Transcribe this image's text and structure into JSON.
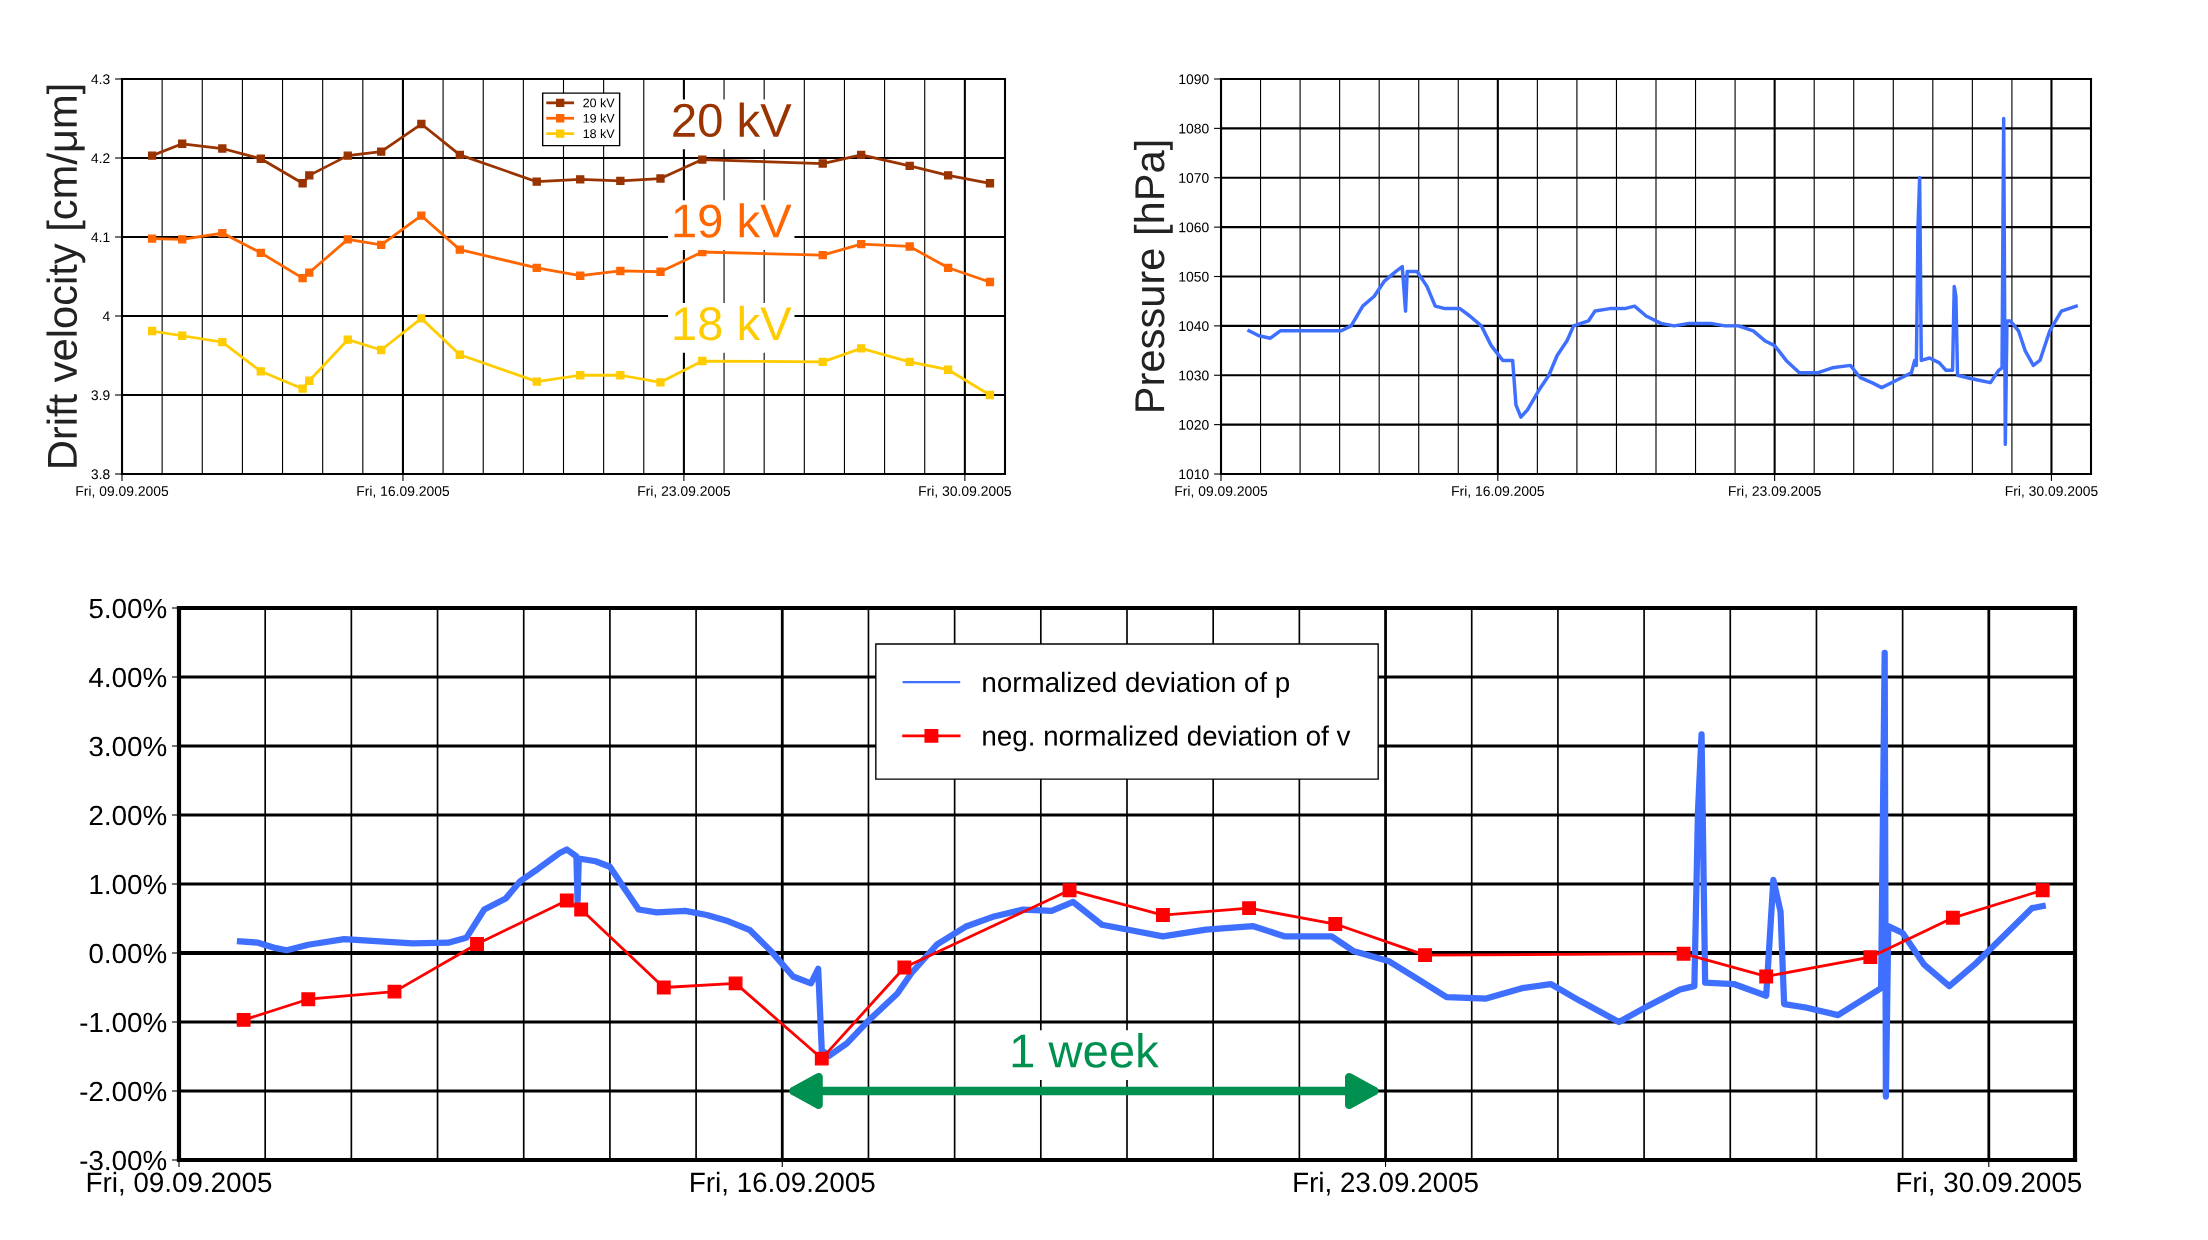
{
  "chart_data": [
    {
      "type": "line",
      "ylabel": "Drift velocity [cm/μm]",
      "xlim": [
        "2005-09-09",
        "2005-10-01"
      ],
      "ylim": [
        3.8,
        4.3
      ],
      "yticks": [
        3.8,
        3.9,
        4,
        4.1,
        4.2,
        4.3
      ],
      "xticks": [
        {
          "value": "2005-09-09",
          "label": "Fri, 09.09.2005"
        },
        {
          "value": "2005-09-16",
          "label": "Fri, 16.09.2005"
        },
        {
          "value": "2005-09-23",
          "label": "Fri, 23.09.2005"
        },
        {
          "value": "2005-09-30",
          "label": "Fri, 30.09.2005"
        }
      ],
      "x": [
        "2005-09-09T18:00",
        "2005-09-10T12:00",
        "2005-09-11T12:00",
        "2005-09-12T11:00",
        "2005-09-13T12:00",
        "2005-09-13T16:00",
        "2005-09-14T15:00",
        "2005-09-15T11:00",
        "2005-09-16T11:00",
        "2005-09-17T10:00",
        "2005-09-19T08:00",
        "2005-09-20T10:00",
        "2005-09-21T10:00",
        "2005-09-22T10:00",
        "2005-09-23T11:00",
        "2005-09-26T11:00",
        "2005-09-27T10:00",
        "2005-09-28T15:00",
        "2005-09-29T14:00",
        "2005-09-30T15:00"
      ],
      "series": [
        {
          "name": "20 kV",
          "color": "#993300",
          "marker": "square",
          "values": [
            4.203,
            4.218,
            4.212,
            4.199,
            4.168,
            4.178,
            4.203,
            4.208,
            4.243,
            4.204,
            4.17,
            4.173,
            4.171,
            4.174,
            4.198,
            4.193,
            4.204,
            4.19,
            4.178,
            4.168
          ]
        },
        {
          "name": "19 kV",
          "color": "#ff6600",
          "marker": "square",
          "values": [
            4.098,
            4.097,
            4.105,
            4.08,
            4.048,
            4.055,
            4.097,
            4.09,
            4.127,
            4.084,
            4.061,
            4.051,
            4.057,
            4.056,
            4.081,
            4.077,
            4.091,
            4.088,
            4.061,
            4.043
          ]
        },
        {
          "name": "18 kV",
          "color": "#ffcc00",
          "marker": "square",
          "values": [
            3.981,
            3.975,
            3.967,
            3.93,
            3.908,
            3.918,
            3.97,
            3.957,
            3.997,
            3.951,
            3.917,
            3.925,
            3.925,
            3.916,
            3.943,
            3.942,
            3.959,
            3.942,
            3.932,
            3.9
          ]
        }
      ],
      "annotations": [
        "20 kV",
        "19 kV",
        "18 kV"
      ],
      "legend": "top",
      "grid": true,
      "line_style": "solid"
    },
    {
      "type": "line",
      "ylabel": "Pressure [hPa]",
      "xlim": [
        "2005-09-09",
        "2005-10-01"
      ],
      "ylim": [
        1010,
        1090
      ],
      "yticks": [
        1010,
        1020,
        1030,
        1040,
        1050,
        1060,
        1070,
        1080,
        1090
      ],
      "xticks": [
        {
          "value": "2005-09-09",
          "label": "Fri, 09.09.2005"
        },
        {
          "value": "2005-09-16",
          "label": "Fri, 16.09.2005"
        },
        {
          "value": "2005-09-23",
          "label": "Fri, 23.09.2005"
        },
        {
          "value": "2005-09-30",
          "label": "Fri, 30.09.2005"
        }
      ],
      "x": [
        "2005-09-09T17:00",
        "2005-09-09T23:00",
        "2005-09-10T06:00",
        "2005-09-10T12:00",
        "2005-09-10T21:00",
        "2005-09-11T06:00",
        "2005-09-11T16:00",
        "2005-09-12T01:00",
        "2005-09-12T07:00",
        "2005-09-12T14:00",
        "2005-09-12T21:00",
        "2005-09-13T03:00",
        "2005-09-13T10:00",
        "2005-09-13T14:00",
        "2005-09-13T16:00",
        "2005-09-13T17:00",
        "2005-09-13T23:00",
        "2005-09-14T05:00",
        "2005-09-14T10:00",
        "2005-09-14T16:00",
        "2005-09-15T01:00",
        "2005-09-15T07:00",
        "2005-09-15T14:00",
        "2005-09-15T20:00",
        "2005-09-16T03:00",
        "2005-09-16T09:00",
        "2005-09-16T11:00",
        "2005-09-16T14:00",
        "2005-09-16T18:00",
        "2005-09-17T01:00",
        "2005-09-17T07:00",
        "2005-09-17T12:00",
        "2005-09-17T18:00",
        "2005-09-17T22:00",
        "2005-09-18T07:00",
        "2005-09-18T11:00",
        "2005-09-18T20:00",
        "2005-09-19T05:00",
        "2005-09-19T11:00",
        "2005-09-19T18:00",
        "2005-09-20T03:00",
        "2005-09-20T11:00",
        "2005-09-20T20:00",
        "2005-09-21T09:00",
        "2005-09-21T18:00",
        "2005-09-22T02:00",
        "2005-09-22T11:00",
        "2005-09-22T18:00",
        "2005-09-23T00:00",
        "2005-09-23T07:00",
        "2005-09-23T15:00",
        "2005-09-24T02:00",
        "2005-09-24T11:00",
        "2005-09-24T22:00",
        "2005-09-25T04:00",
        "2005-09-25T11:00",
        "2005-09-25T17:00",
        "2005-09-26T02:00",
        "2005-09-26T11:00",
        "2005-09-26T13:00",
        "2005-09-26T14:00",
        "2005-09-26T15:00",
        "2005-09-26T16:00",
        "2005-09-26T17:00",
        "2005-09-26T22:00",
        "2005-09-27T04:00",
        "2005-09-27T08:00",
        "2005-09-27T12:00",
        "2005-09-27T13:00",
        "2005-09-27T14:00",
        "2005-09-27T15:00",
        "2005-09-27T21:00",
        "2005-09-28T04:00",
        "2005-09-28T11:00",
        "2005-09-28T16:00",
        "2005-09-28T18:00",
        "2005-09-28T19:00",
        "2005-09-28T20:00",
        "2005-09-28T21:00",
        "2005-09-28T23:00",
        "2005-09-29T04:00",
        "2005-09-29T08:00",
        "2005-09-29T13:00",
        "2005-09-29T17:00",
        "2005-09-29T23:00",
        "2005-09-30T06:00",
        "2005-09-30T15:00"
      ],
      "series": [
        {
          "color": "#3f6fff",
          "marker": "none",
          "values": [
            1039,
            1038,
            1037.5,
            1039,
            1039,
            1039,
            1039,
            1039,
            1040,
            1044,
            1046,
            1049,
            1051,
            1052,
            1043,
            1051,
            1051,
            1048,
            1044,
            1043.5,
            1043.5,
            1042,
            1040,
            1036,
            1033,
            1033,
            1024,
            1021.5,
            1023,
            1027,
            1030,
            1034,
            1037,
            1040,
            1041,
            1043,
            1043.5,
            1043.5,
            1044,
            1042,
            1040.5,
            1040,
            1040.5,
            1040.5,
            1040,
            1040,
            1039,
            1037,
            1036,
            1033,
            1030.5,
            1030.5,
            1031.5,
            1032,
            1029.5,
            1028.5,
            1027.5,
            1029,
            1030.5,
            1033,
            1032,
            1060,
            1070,
            1033,
            1033.5,
            1032.5,
            1031,
            1031,
            1048,
            1046,
            1030,
            1029.5,
            1029,
            1028.5,
            1031,
            1031.5,
            1082,
            1016,
            1041,
            1041,
            1039,
            1035,
            1032,
            1033,
            1039,
            1043,
            1044
          ]
        }
      ],
      "grid": true,
      "line_style": "solid"
    },
    {
      "type": "line",
      "xlim": [
        "2005-09-09",
        "2005-10-01"
      ],
      "ylim": [
        -3,
        5
      ],
      "yticks": [
        {
          "value": -3,
          "label": "-3.00%"
        },
        {
          "value": -2,
          "label": "-2.00%"
        },
        {
          "value": -1,
          "label": "-1.00%"
        },
        {
          "value": 0,
          "label": "0.00%"
        },
        {
          "value": 1,
          "label": "1.00%"
        },
        {
          "value": 2,
          "label": "2.00%"
        },
        {
          "value": 3,
          "label": "3.00%"
        },
        {
          "value": 4,
          "label": "4.00%"
        },
        {
          "value": 5,
          "label": "5.00%"
        }
      ],
      "xticks": [
        {
          "value": "2005-09-09",
          "label": "Fri, 09.09.2005"
        },
        {
          "value": "2005-09-16",
          "label": "Fri, 16.09.2005"
        },
        {
          "value": "2005-09-23",
          "label": "Fri, 23.09.2005"
        },
        {
          "value": "2005-09-30",
          "label": "Fri, 30.09.2005"
        }
      ],
      "series": [
        {
          "name": "normalized deviation of p",
          "color": "#3f6fff",
          "marker": "none",
          "x": [
            "2005-09-09T17:00",
            "2005-09-09T22:00",
            "2005-09-10T03:00",
            "2005-09-10T06:00",
            "2005-09-10T12:00",
            "2005-09-10T22:00",
            "2005-09-11T08:00",
            "2005-09-11T17:00",
            "2005-09-12T03:00",
            "2005-09-12T08:00",
            "2005-09-12T13:00",
            "2005-09-12T19:00",
            "2005-09-12T23:00",
            "2005-09-13T04:00",
            "2005-09-13T10:00",
            "2005-09-13T12:00",
            "2005-09-13T14:40",
            "2005-09-13T15:00",
            "2005-09-13T15:20",
            "2005-09-13T20:00",
            "2005-09-14T00:00",
            "2005-09-14T04:00",
            "2005-09-14T08:00",
            "2005-09-14T13:00",
            "2005-09-14T21:00",
            "2005-09-15T03:00",
            "2005-09-15T09:00",
            "2005-09-15T15:00",
            "2005-09-15T21:00",
            "2005-09-16T03:00",
            "2005-09-16T08:00",
            "2005-09-16T10:00",
            "2005-09-16T11:00",
            "2005-09-16T13:00",
            "2005-09-16T18:00",
            "2005-09-17T00:00",
            "2005-09-17T08:00",
            "2005-09-17T12:00",
            "2005-09-17T19:00",
            "2005-09-18T03:00",
            "2005-09-18T11:00",
            "2005-09-18T19:00",
            "2005-09-19T03:00",
            "2005-09-19T09:00",
            "2005-09-19T17:00",
            "2005-09-20T00:00",
            "2005-09-20T10:00",
            "2005-09-20T22:00",
            "2005-09-21T11:00",
            "2005-09-21T20:00",
            "2005-09-22T09:00",
            "2005-09-22T15:00",
            "2005-09-23T01:00",
            "2005-09-23T09:00",
            "2005-09-23T17:00",
            "2005-09-24T04:00",
            "2005-09-24T14:00",
            "2005-09-24T22:00",
            "2005-09-25T06:00",
            "2005-09-25T17:00",
            "2005-09-26T01:00",
            "2005-09-26T10:00",
            "2005-09-26T14:00",
            "2005-09-26T15:00",
            "2005-09-26T16:00",
            "2005-09-26T17:00",
            "2005-09-27T01:00",
            "2005-09-27T10:00",
            "2005-09-27T12:00",
            "2005-09-27T14:00",
            "2005-09-27T15:00",
            "2005-09-27T21:00",
            "2005-09-28T06:00",
            "2005-09-28T14:00",
            "2005-09-28T18:00",
            "2005-09-28T19:00",
            "2005-09-28T19:20",
            "2005-09-28T20:00",
            "2005-09-29T00:00",
            "2005-09-29T06:00",
            "2005-09-29T13:00",
            "2005-09-29T20:00",
            "2005-09-30T04:00",
            "2005-09-30T12:00",
            "2005-09-30T15:00"
          ],
          "values": [
            0.17,
            0.15,
            0.07,
            0.04,
            0.12,
            0.2,
            0.17,
            0.14,
            0.15,
            0.22,
            0.63,
            0.79,
            1.04,
            1.22,
            1.45,
            1.5,
            1.4,
            0.74,
            1.37,
            1.33,
            1.25,
            0.94,
            0.63,
            0.59,
            0.61,
            0.55,
            0.46,
            0.33,
            0.02,
            -0.34,
            -0.44,
            -0.23,
            -1.41,
            -1.49,
            -1.31,
            -0.98,
            -0.59,
            -0.29,
            0.12,
            0.38,
            0.53,
            0.63,
            0.61,
            0.74,
            0.41,
            0.34,
            0.24,
            0.34,
            0.39,
            0.24,
            0.24,
            0.03,
            -0.12,
            -0.38,
            -0.64,
            -0.66,
            -0.51,
            -0.45,
            -0.69,
            -1.0,
            -0.77,
            -0.53,
            -0.48,
            2.04,
            3.17,
            -0.43,
            -0.45,
            -0.62,
            1.06,
            0.6,
            -0.74,
            -0.79,
            -0.9,
            -0.64,
            -0.51,
            4.35,
            -2.08,
            0.39,
            0.29,
            -0.17,
            -0.48,
            -0.17,
            0.24,
            0.65,
            0.68
          ]
        },
        {
          "name": "neg. normalized deviation of v",
          "color": "#ff0000",
          "marker": "square",
          "x": [
            "2005-09-09T18:00",
            "2005-09-10T12:00",
            "2005-09-11T12:00",
            "2005-09-12T11:00",
            "2005-09-13T12:00",
            "2005-09-13T16:00",
            "2005-09-14T15:00",
            "2005-09-15T11:00",
            "2005-09-16T11:00",
            "2005-09-17T10:00",
            "2005-09-19T08:00",
            "2005-09-20T10:00",
            "2005-09-21T10:00",
            "2005-09-22T10:00",
            "2005-09-23T11:00",
            "2005-09-26T11:00",
            "2005-09-27T10:00",
            "2005-09-28T15:00",
            "2005-09-29T14:00",
            "2005-09-30T15:00"
          ],
          "values": [
            -0.97,
            -0.67,
            -0.56,
            0.13,
            0.76,
            0.63,
            -0.5,
            -0.44,
            -1.53,
            -0.21,
            0.91,
            0.55,
            0.65,
            0.42,
            -0.03,
            -0.01,
            -0.34,
            -0.06,
            0.51,
            0.91
          ]
        }
      ],
      "annotations": [
        "1 week"
      ],
      "ref_lines": [
        {
          "axis": "y",
          "value": 0
        }
      ],
      "legend": "top",
      "grid": true,
      "line_style": "solid"
    }
  ]
}
